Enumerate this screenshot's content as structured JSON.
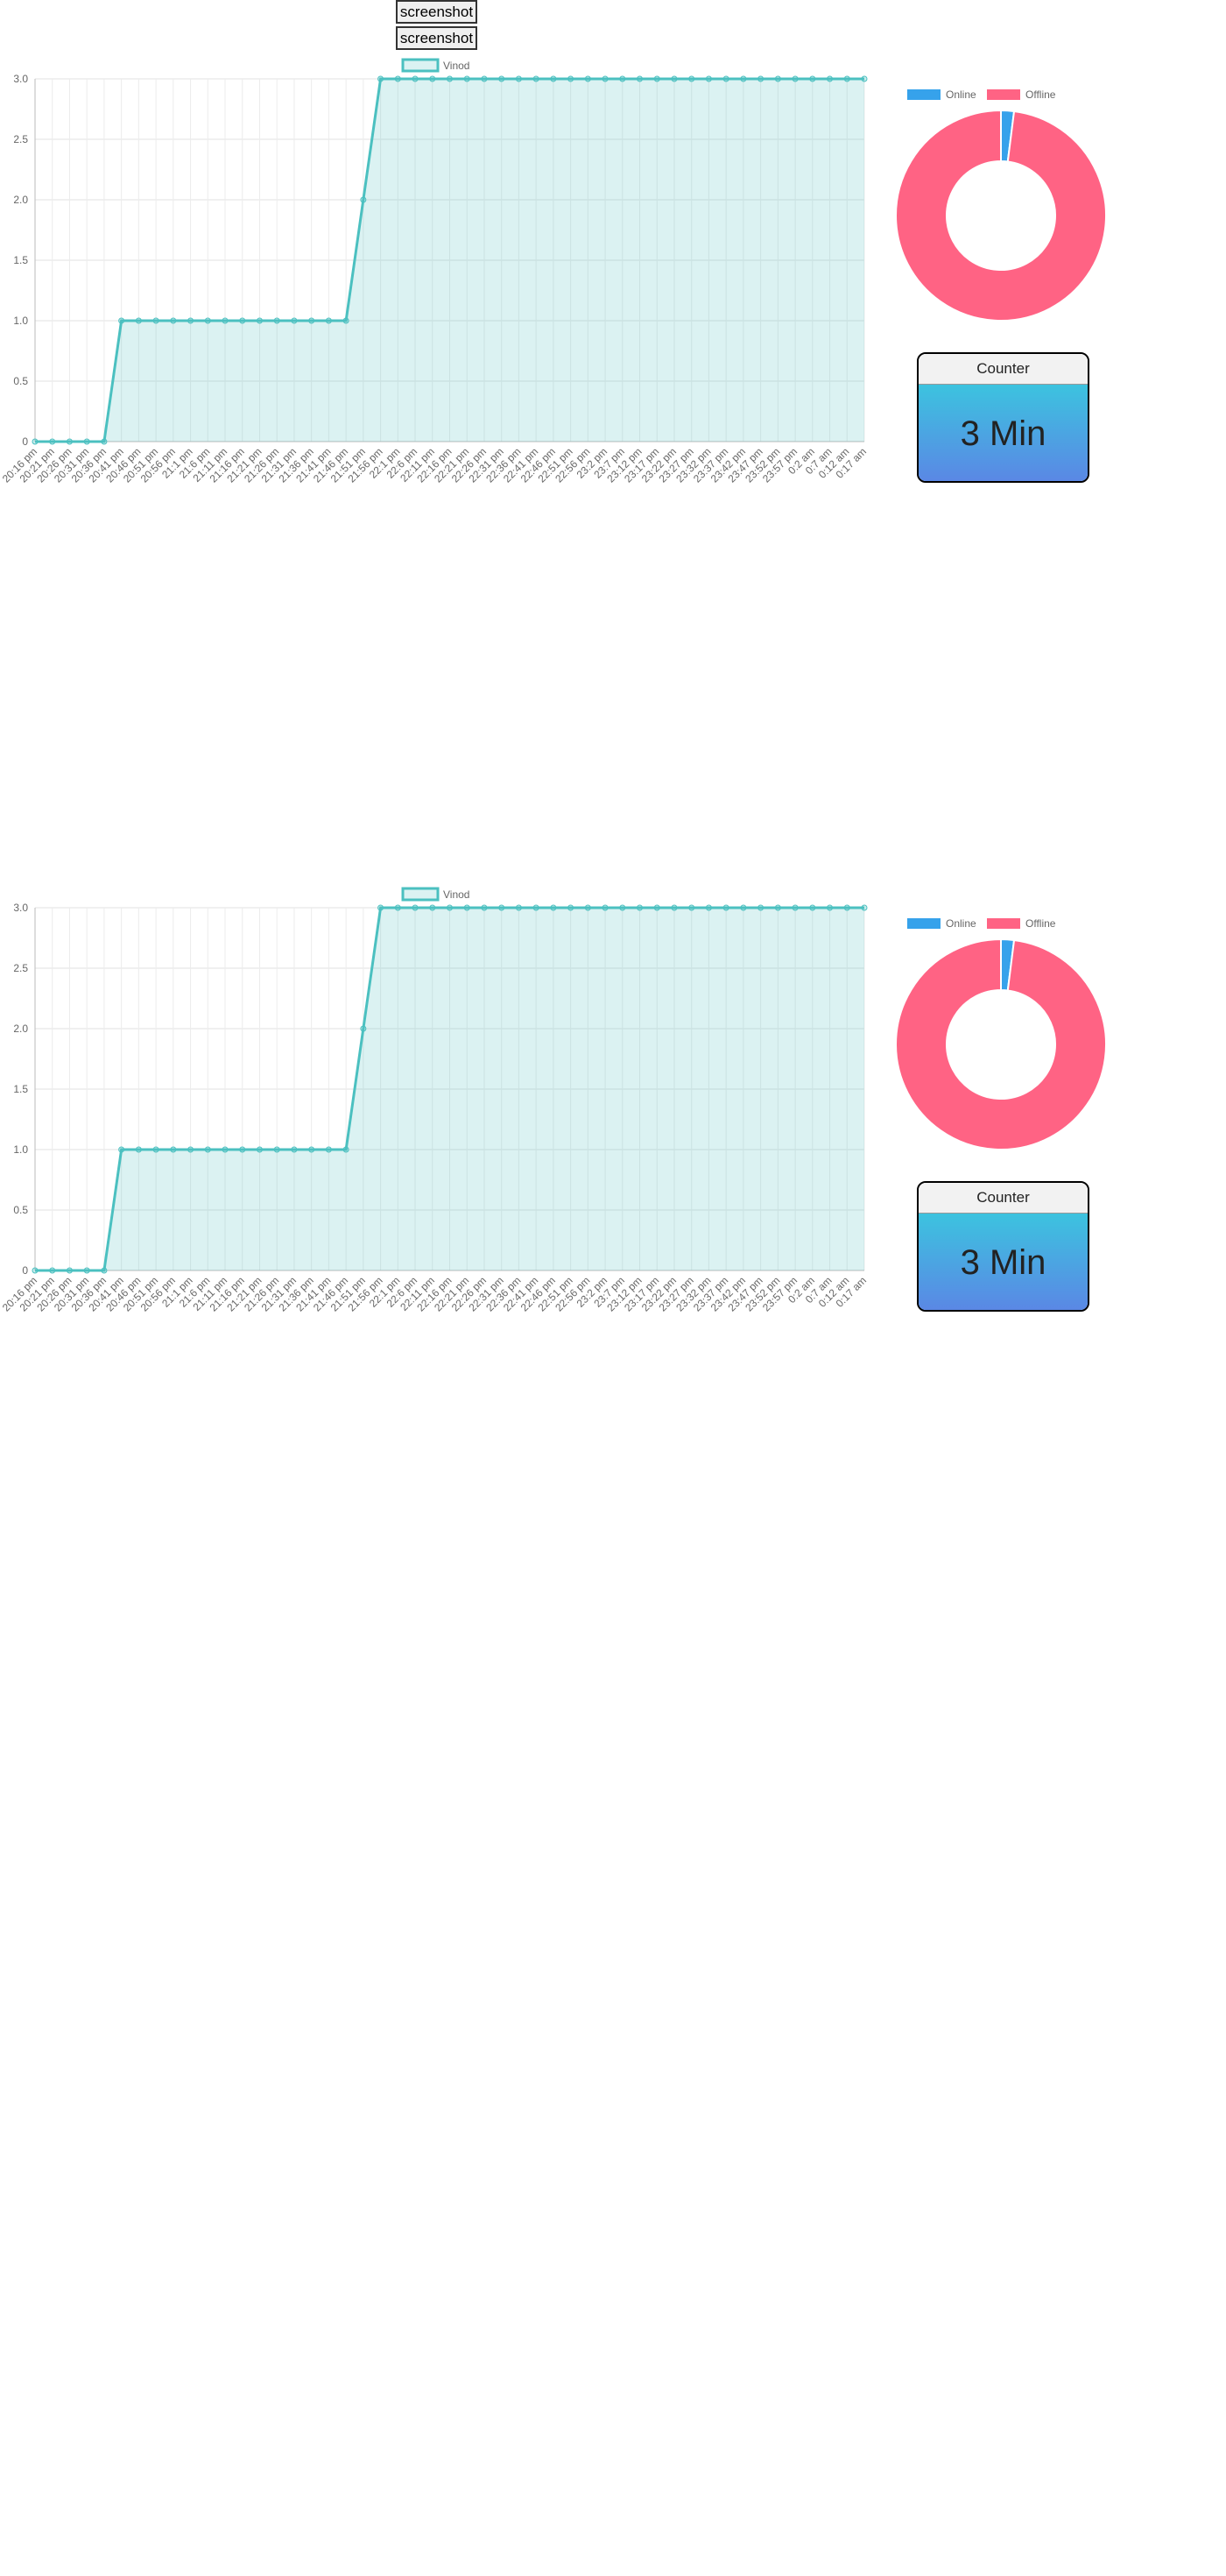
{
  "buttons": [
    "screenshot",
    "screenshot"
  ],
  "counters": [
    {
      "title": "Counter",
      "value": "3 Min"
    },
    {
      "title": "Counter",
      "value": "3 Min"
    }
  ],
  "chart_data": [
    {
      "type": "line",
      "categories": [
        "20:16 pm",
        "20:21 pm",
        "20:26 pm",
        "20:31 pm",
        "20:36 pm",
        "20:41 pm",
        "20:46 pm",
        "20:51 pm",
        "20:56 pm",
        "21:1 pm",
        "21:6 pm",
        "21:11 pm",
        "21:16 pm",
        "21:21 pm",
        "21:26 pm",
        "21:31 pm",
        "21:36 pm",
        "21:41 pm",
        "21:46 pm",
        "21:51 pm",
        "21:56 pm",
        "22:1 pm",
        "22:6 pm",
        "22:11 pm",
        "22:16 pm",
        "22:21 pm",
        "22:26 pm",
        "22:31 pm",
        "22:36 pm",
        "22:41 pm",
        "22:46 pm",
        "22:51 pm",
        "22:56 pm",
        "23:2 pm",
        "23:7 pm",
        "23:12 pm",
        "23:17 pm",
        "23:22 pm",
        "23:27 pm",
        "23:32 pm",
        "23:37 pm",
        "23:42 pm",
        "23:47 pm",
        "23:52 pm",
        "23:57 pm",
        "0:2 am",
        "0:7 am",
        "0:12 am",
        "0:17 am"
      ],
      "series": [
        {
          "name": "Vinod",
          "color": "#4bc0c0",
          "values": [
            0,
            0,
            0,
            0,
            0,
            1,
            1,
            1,
            1,
            1,
            1,
            1,
            1,
            1,
            1,
            1,
            1,
            1,
            1,
            2,
            3,
            3,
            3,
            3,
            3,
            3,
            3,
            3,
            3,
            3,
            3,
            3,
            3,
            3,
            3,
            3,
            3,
            3,
            3,
            3,
            3,
            3,
            3,
            3,
            3,
            3,
            3,
            3,
            3
          ]
        }
      ],
      "ylim": [
        0,
        3
      ],
      "yticks": [
        0,
        0.5,
        {
          "value": 1,
          "label": "1.0"
        },
        1.5,
        {
          "value": 2,
          "label": "2.0"
        },
        2.5,
        {
          "value": 3,
          "label": "3.0"
        }
      ],
      "grid": true
    },
    {
      "type": "pie",
      "categories": [
        "Online",
        "Offline"
      ],
      "values": [
        2,
        98
      ],
      "colors": [
        "#36a2eb",
        "#ff6384"
      ]
    },
    {
      "type": "line",
      "categories": [
        "20:16 pm",
        "20:21 pm",
        "20:26 pm",
        "20:31 pm",
        "20:36 pm",
        "20:41 pm",
        "20:46 pm",
        "20:51 pm",
        "20:56 pm",
        "21:1 pm",
        "21:6 pm",
        "21:11 pm",
        "21:16 pm",
        "21:21 pm",
        "21:26 pm",
        "21:31 pm",
        "21:36 pm",
        "21:41 pm",
        "21:46 pm",
        "21:51 pm",
        "21:56 pm",
        "22:1 pm",
        "22:6 pm",
        "22:11 pm",
        "22:16 pm",
        "22:21 pm",
        "22:26 pm",
        "22:31 pm",
        "22:36 pm",
        "22:41 pm",
        "22:46 pm",
        "22:51 pm",
        "22:56 pm",
        "23:2 pm",
        "23:7 pm",
        "23:12 pm",
        "23:17 pm",
        "23:22 pm",
        "23:27 pm",
        "23:32 pm",
        "23:37 pm",
        "23:42 pm",
        "23:47 pm",
        "23:52 pm",
        "23:57 pm",
        "0:2 am",
        "0:7 am",
        "0:12 am",
        "0:17 am"
      ],
      "series": [
        {
          "name": "Vinod",
          "color": "#4bc0c0",
          "values": [
            0,
            0,
            0,
            0,
            0,
            1,
            1,
            1,
            1,
            1,
            1,
            1,
            1,
            1,
            1,
            1,
            1,
            1,
            1,
            2,
            3,
            3,
            3,
            3,
            3,
            3,
            3,
            3,
            3,
            3,
            3,
            3,
            3,
            3,
            3,
            3,
            3,
            3,
            3,
            3,
            3,
            3,
            3,
            3,
            3,
            3,
            3,
            3,
            3
          ]
        }
      ],
      "ylim": [
        0,
        3
      ],
      "yticks": [
        0,
        0.5,
        {
          "value": 1,
          "label": "1.0"
        },
        1.5,
        {
          "value": 2,
          "label": "2.0"
        },
        2.5,
        {
          "value": 3,
          "label": "3.0"
        }
      ],
      "grid": true
    },
    {
      "type": "pie",
      "categories": [
        "Online",
        "Offline"
      ],
      "values": [
        2,
        98
      ],
      "colors": [
        "#36a2eb",
        "#ff6384"
      ]
    }
  ]
}
